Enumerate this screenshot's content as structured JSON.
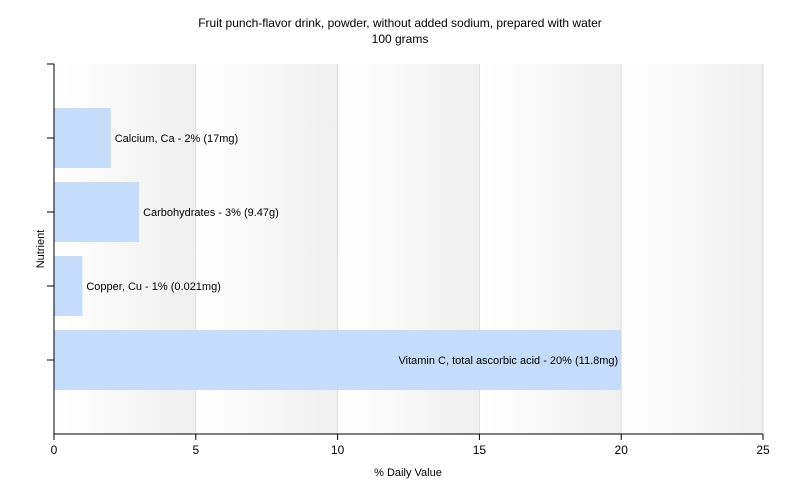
{
  "chart_data": {
    "type": "bar",
    "orientation": "horizontal",
    "title": "Fruit punch-flavor drink, powder, without added sodium, prepared with water",
    "subtitle": "100 grams",
    "xlabel": "% Daily Value",
    "ylabel": "Nutrient",
    "xlim": [
      0,
      25
    ],
    "xticks": [
      0,
      5,
      10,
      15,
      20,
      25
    ],
    "grid": true,
    "bar_color": "#c6dcfb",
    "categories": [
      "Calcium, Ca",
      "Carbohydrates",
      "Copper, Cu",
      "Vitamin C, total ascorbic acid"
    ],
    "values": [
      2,
      3,
      1,
      20
    ],
    "data_labels": [
      "Calcium, Ca - 2% (17mg)",
      "Carbohydrates - 3% (9.47g)",
      "Copper, Cu - 1% (0.021mg)",
      "Vitamin C, total ascorbic acid - 20% (11.8mg)"
    ]
  }
}
